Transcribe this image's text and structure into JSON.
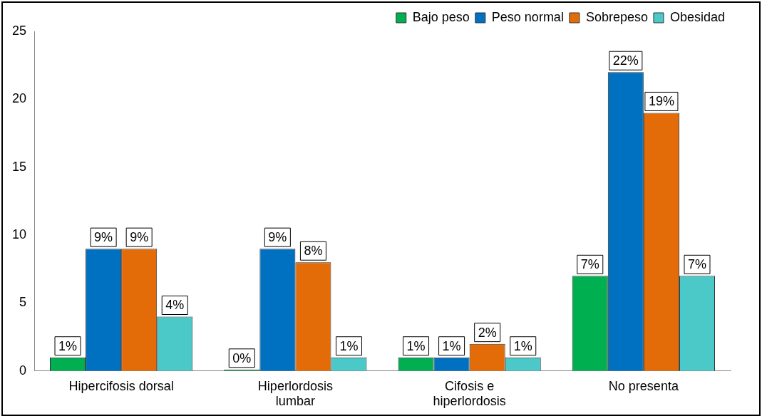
{
  "chart_data": {
    "type": "bar",
    "categories": [
      "Hipercifosis dorsal",
      "Hiperlordosis\nlumbar",
      "Cifosis e\nhiperlordosis",
      "No presenta"
    ],
    "series": [
      {
        "name": "Bajo peso",
        "color": "#00b050",
        "values": [
          1,
          0,
          1,
          7
        ],
        "value_labels": [
          "1%",
          "0%",
          "1%",
          "7%"
        ]
      },
      {
        "name": "Peso normal",
        "color": "#0070c0",
        "values": [
          9,
          9,
          1,
          22
        ],
        "value_labels": [
          "9%",
          "9%",
          "1%",
          "22%"
        ]
      },
      {
        "name": "Sobrepeso",
        "color": "#e36c09",
        "values": [
          9,
          8,
          2,
          19
        ],
        "value_labels": [
          "9%",
          "8%",
          "2%",
          "19%"
        ]
      },
      {
        "name": "Obesidad",
        "color": "#4bc8c8",
        "values": [
          4,
          1,
          1,
          7
        ],
        "value_labels": [
          "4%",
          "1%",
          "1%",
          "7%"
        ]
      }
    ],
    "ylim": [
      0,
      25
    ],
    "yticks": [
      0,
      5,
      10,
      15,
      20,
      25
    ],
    "grid": false,
    "legend": "top right"
  }
}
